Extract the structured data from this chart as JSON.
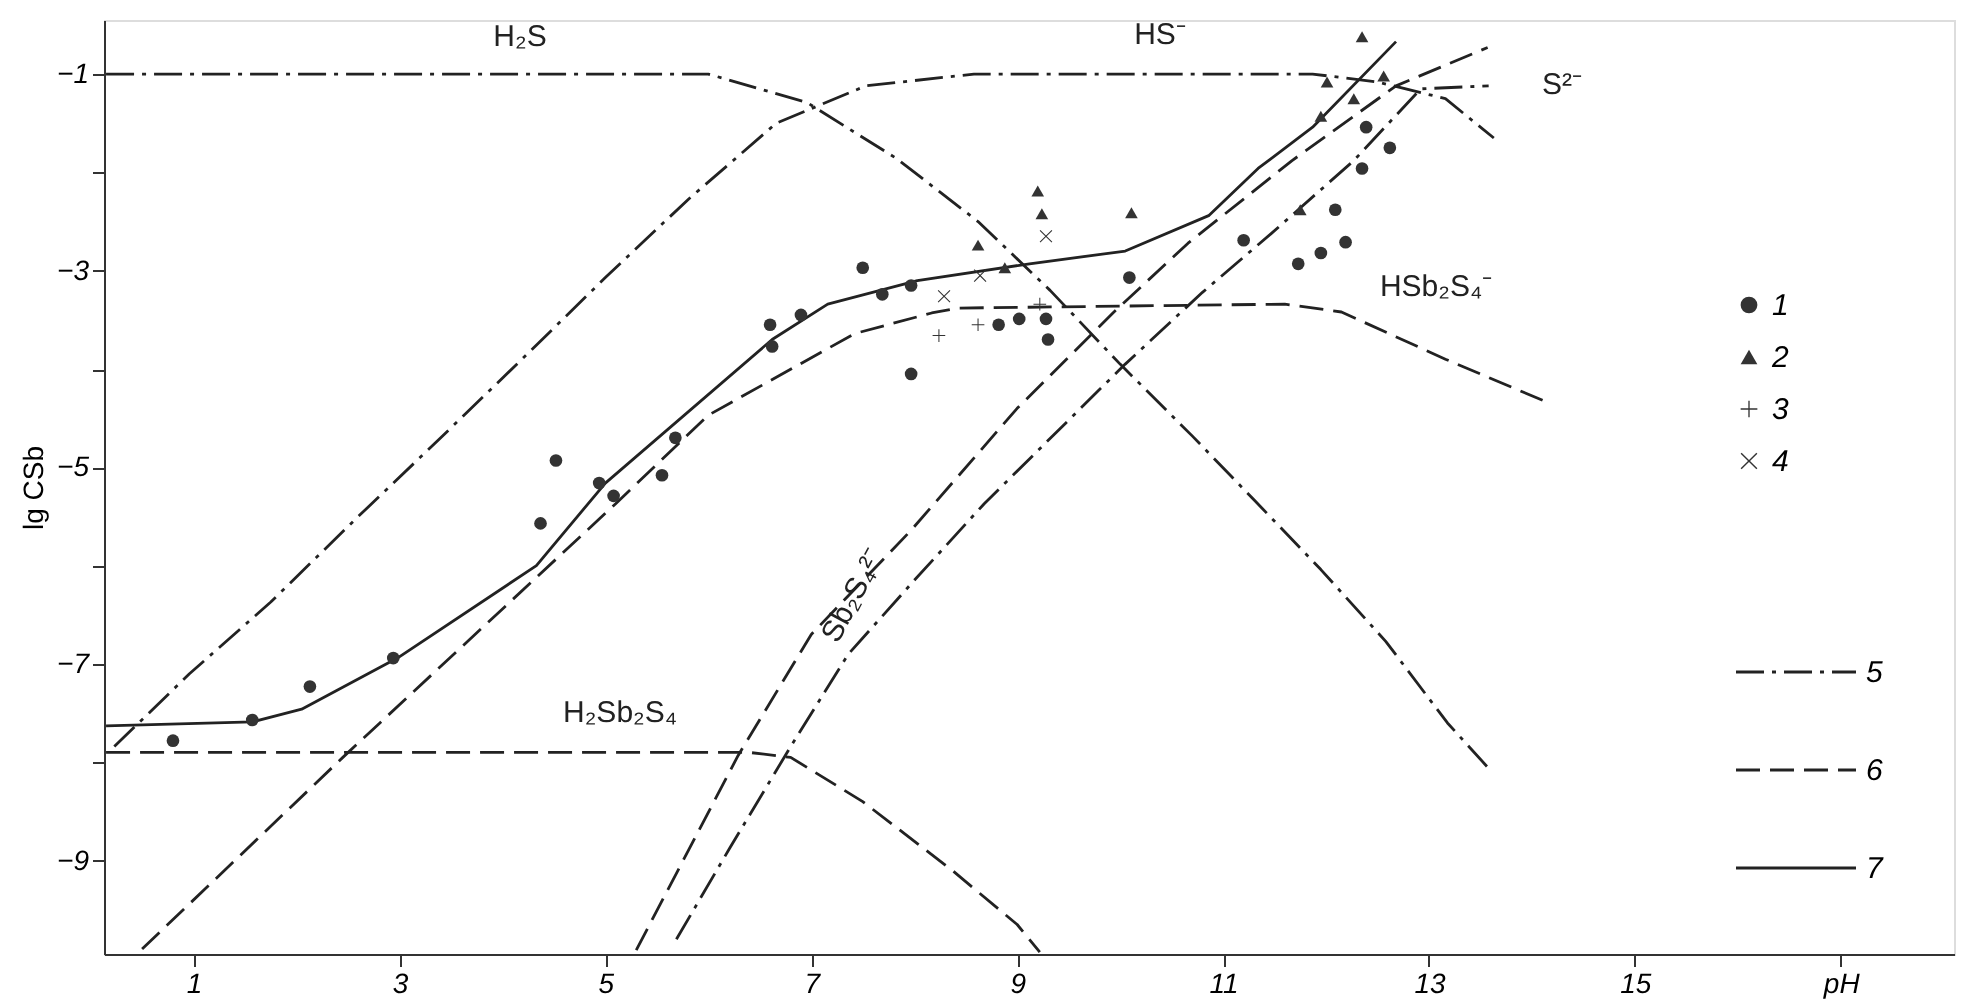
{
  "chart_data": {
    "type": "line",
    "ylabel": "lg CSb",
    "xlim": [
      0.13,
      18.1
    ],
    "ylim": [
      -9.95,
      -0.45
    ],
    "xticks": [
      1,
      3,
      5,
      7,
      9,
      11,
      13,
      15,
      {
        "value": 17,
        "label": "pH"
      }
    ],
    "yticks": [
      -1,
      {
        "value": -2,
        "label": null
      },
      -3,
      {
        "value": -4,
        "label": null
      },
      -5,
      {
        "value": -6,
        "label": null
      },
      -7,
      {
        "value": -8,
        "label": null
      },
      -9
    ],
    "grid": false,
    "legend": "right",
    "annotations": [
      "H₂S",
      "HS⁻",
      "S²⁻",
      "HSb₂S₄⁻",
      {
        "text": "Sb₂S₄²⁻",
        "x": 7.4,
        "y": -6.3
      },
      "H₂Sb₂S₄"
    ],
    "series": [
      {
        "name": "1",
        "type": "scatter",
        "marker": "circle",
        "color": "#333333",
        "x": [
          0.8,
          1.57,
          2.13,
          2.94,
          4.37,
          4.52,
          4.94,
          5.08,
          5.55,
          5.68,
          6.6,
          6.62,
          6.9,
          7.5,
          7.69,
          7.97,
          7.97,
          8.82,
          9.02,
          9.28,
          9.3,
          10.09,
          11.2,
          11.73,
          11.95,
          12.19,
          12.09,
          12.35,
          12.62,
          12.39
        ],
        "values": [
          -7.78,
          -7.57,
          -7.23,
          -6.94,
          -5.57,
          -4.93,
          -5.16,
          -5.29,
          -5.08,
          -4.7,
          -3.55,
          -3.77,
          -3.45,
          -2.97,
          -3.24,
          -3.15,
          -4.05,
          -3.55,
          -3.49,
          -3.49,
          -3.7,
          -3.07,
          -2.69,
          -2.93,
          -2.82,
          -2.71,
          -2.38,
          -1.96,
          -1.75,
          -1.54
        ]
      },
      {
        "name": "2",
        "type": "scatter",
        "marker": "triangle",
        "color": "#333333",
        "x": [
          12.35,
          12.01,
          12.27,
          11.95,
          12.56,
          9.2,
          9.24,
          8.62,
          8.88,
          10.11,
          11.75
        ],
        "values": [
          -0.62,
          -1.08,
          -1.25,
          -1.43,
          -1.02,
          -2.19,
          -2.42,
          -2.74,
          -2.97,
          -2.41,
          -2.38
        ]
      },
      {
        "name": "3",
        "type": "scatter",
        "marker": "cross",
        "color": "#333333",
        "x": [
          8.24,
          8.62,
          9.22
        ],
        "values": [
          -3.66,
          -3.55,
          -3.34
        ]
      },
      {
        "name": "4",
        "type": "scatter",
        "marker": "x",
        "color": "#333333",
        "x": [
          8.29,
          8.64,
          9.28
        ],
        "values": [
          -3.26,
          -3.05,
          -2.65
        ]
      },
      {
        "name": "5",
        "line_style": "dashdot",
        "color": "#222222",
        "x": [
          0.15,
          6.0,
          6.96,
          7.83,
          8.62,
          9.32,
          10.0,
          10.7,
          11.3,
          11.95,
          12.58,
          13.18,
          13.57,
          null,
          0.23,
          0.96,
          1.75,
          2.58,
          3.36,
          4.19,
          5.0,
          5.81,
          6.66,
          7.53,
          8.58,
          11.87,
          12.5,
          13.16,
          13.63,
          null,
          5.69,
          6.21,
          6.8,
          7.36,
          8.0,
          8.68,
          10.05,
          10.8,
          11.47,
          12.27,
          12.92,
          13.58
        ],
        "values": [
          -1,
          -1,
          -1.29,
          -1.86,
          -2.5,
          -3.2,
          -3.95,
          -4.68,
          -5.33,
          -6.04,
          -6.77,
          -7.6,
          -8.05,
          null,
          -7.84,
          -7.1,
          -6.37,
          -5.52,
          -4.74,
          -3.9,
          -3.07,
          -2.27,
          -1.5,
          -1.12,
          -1.0,
          -1.0,
          -1.08,
          -1.25,
          -1.65,
          null,
          -9.8,
          -8.87,
          -7.84,
          -6.9,
          -6.15,
          -5.37,
          -3.95,
          -3.22,
          -2.62,
          -1.88,
          -1.15,
          -1.12
        ]
      },
      {
        "name": "6",
        "line_style": "dashed",
        "color": "#222222",
        "x": [
          0.15,
          6.4,
          6.8,
          7.5,
          8.37,
          9.0,
          9.22,
          null,
          0.5,
          2.45,
          5.1,
          6.0,
          7.42,
          8.17,
          8.43,
          11.6,
          12.15,
          13.16,
          14.13,
          null,
          5.3,
          6.29,
          7.0,
          7.97,
          9.0,
          9.93,
          10.66,
          11.67,
          12.68,
          13.57
        ],
        "values": [
          -7.9,
          -7.9,
          -7.95,
          -8.4,
          -9.1,
          -9.65,
          -9.93,
          null,
          -9.9,
          -7.95,
          -5.37,
          -4.47,
          -3.64,
          -3.43,
          -3.38,
          -3.34,
          -3.42,
          -3.9,
          -4.33,
          null,
          -9.91,
          -7.93,
          -6.7,
          -5.64,
          -4.4,
          -3.43,
          -2.72,
          -1.88,
          -1.12,
          -0.73
        ]
      },
      {
        "name": "7",
        "line_style": "solid",
        "color": "#222222",
        "x": [
          0.15,
          1.57,
          2.05,
          2.98,
          4.33,
          5.0,
          6.62,
          7.16,
          8.03,
          9.12,
          10.05,
          10.86,
          11.34,
          11.87,
          12.68
        ],
        "values": [
          -7.63,
          -7.59,
          -7.46,
          -6.94,
          -6.0,
          -5.16,
          -3.7,
          -3.34,
          -3.1,
          -2.93,
          -2.8,
          -2.44,
          -1.96,
          -1.54,
          -0.67
        ]
      }
    ]
  }
}
